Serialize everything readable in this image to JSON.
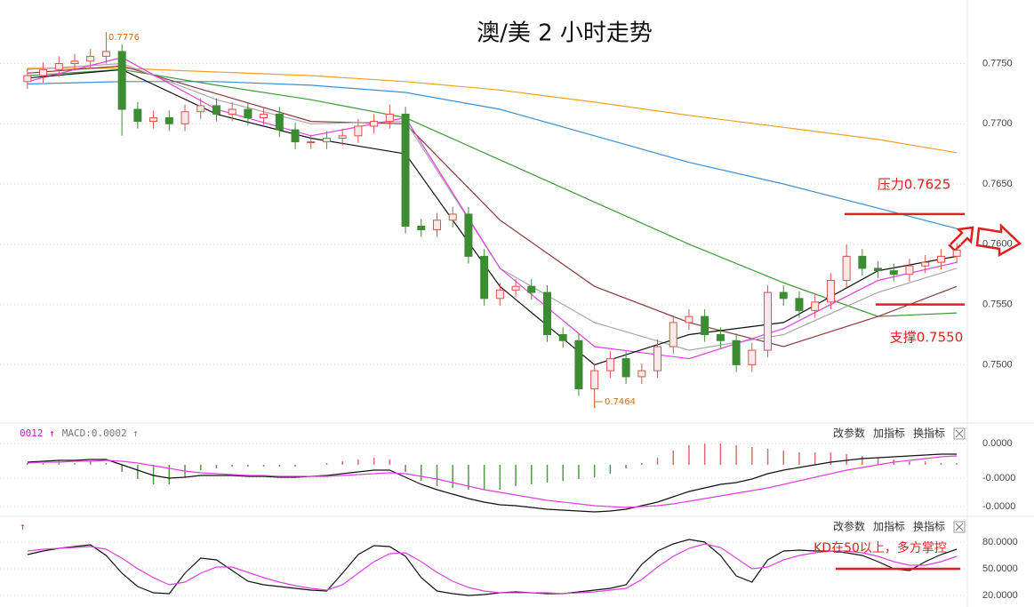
{
  "chart_data": [
    {
      "type": "candlestick",
      "title": "澳/美 2 小时走势",
      "up_color": "#d9534f",
      "down_color": "#3d8c34",
      "open": [
        0.7735,
        0.774,
        0.7745,
        0.775,
        0.7752,
        0.7756,
        0.776,
        0.7712,
        0.7702,
        0.7705,
        0.77,
        0.771,
        0.7715,
        0.7708,
        0.7712,
        0.7705,
        0.7708,
        0.7695,
        0.7685,
        0.7685,
        0.7688,
        0.769,
        0.7698,
        0.7702,
        0.7708,
        0.7615,
        0.7612,
        0.762,
        0.7625,
        0.759,
        0.7555,
        0.7562,
        0.7565,
        0.756,
        0.7525,
        0.752,
        0.748,
        0.7495,
        0.7505,
        0.749,
        0.7495,
        0.7515,
        0.7535,
        0.754,
        0.7525,
        0.752,
        0.75,
        0.7512,
        0.756,
        0.7555,
        0.7545,
        0.7552,
        0.757,
        0.759,
        0.758,
        0.7578,
        0.7575,
        0.7582,
        0.7585,
        0.759
      ],
      "high": [
        0.7746,
        0.7751,
        0.7756,
        0.7758,
        0.7762,
        0.7776,
        0.7766,
        0.7718,
        0.7711,
        0.7711,
        0.7716,
        0.7721,
        0.7721,
        0.7718,
        0.7718,
        0.7714,
        0.7714,
        0.7701,
        0.7691,
        0.7694,
        0.7696,
        0.7704,
        0.7708,
        0.7716,
        0.7714,
        0.7621,
        0.7626,
        0.7631,
        0.7631,
        0.7596,
        0.7568,
        0.7571,
        0.7571,
        0.7566,
        0.7531,
        0.7526,
        0.7501,
        0.7511,
        0.7511,
        0.7501,
        0.7521,
        0.7541,
        0.7546,
        0.7546,
        0.7531,
        0.7526,
        0.7518,
        0.7566,
        0.7566,
        0.7561,
        0.7558,
        0.7576,
        0.76,
        0.7596,
        0.7586,
        0.7584,
        0.7588,
        0.7591,
        0.7596,
        0.7601
      ],
      "low": [
        0.7729,
        0.7734,
        0.7739,
        0.7744,
        0.7746,
        0.775,
        0.769,
        0.7696,
        0.7696,
        0.7694,
        0.7694,
        0.7704,
        0.7702,
        0.7702,
        0.7699,
        0.7699,
        0.7689,
        0.7679,
        0.7679,
        0.7679,
        0.7682,
        0.7684,
        0.7692,
        0.7696,
        0.7609,
        0.7606,
        0.7606,
        0.7614,
        0.7584,
        0.7549,
        0.7549,
        0.7556,
        0.7554,
        0.7519,
        0.7514,
        0.7474,
        0.7464,
        0.7489,
        0.7484,
        0.7484,
        0.7489,
        0.7509,
        0.7529,
        0.7519,
        0.7514,
        0.7494,
        0.7494,
        0.7506,
        0.7549,
        0.7539,
        0.7539,
        0.7546,
        0.7564,
        0.7574,
        0.7572,
        0.7569,
        0.7569,
        0.7576,
        0.7579,
        0.7584
      ],
      "close": [
        0.774,
        0.7745,
        0.775,
        0.7752,
        0.7756,
        0.776,
        0.7712,
        0.7702,
        0.7705,
        0.77,
        0.771,
        0.7715,
        0.7708,
        0.7712,
        0.7705,
        0.7708,
        0.7695,
        0.7685,
        0.7685,
        0.7688,
        0.769,
        0.7698,
        0.7702,
        0.7708,
        0.7615,
        0.7612,
        0.762,
        0.7625,
        0.759,
        0.7555,
        0.7562,
        0.7565,
        0.756,
        0.7525,
        0.752,
        0.748,
        0.7495,
        0.7505,
        0.749,
        0.7495,
        0.7515,
        0.7535,
        0.754,
        0.7525,
        0.752,
        0.75,
        0.7512,
        0.756,
        0.7555,
        0.7545,
        0.7552,
        0.757,
        0.759,
        0.758,
        0.7578,
        0.7575,
        0.7582,
        0.7585,
        0.759,
        0.7595
      ],
      "series": [
        {
          "color": "#f0a020",
          "x": [
            0,
            6,
            12,
            18,
            24,
            30,
            36,
            42,
            48,
            54,
            59
          ],
          "values": [
            0.7746,
            0.7746,
            0.7743,
            0.774,
            0.7735,
            0.7728,
            0.7718,
            0.7707,
            0.7697,
            0.7687,
            0.7676
          ]
        },
        {
          "color": "#3a8fd8",
          "x": [
            0,
            6,
            12,
            18,
            24,
            30,
            36,
            42,
            48,
            54,
            59
          ],
          "values": [
            0.7733,
            0.7735,
            0.7735,
            0.7732,
            0.7726,
            0.7712,
            0.769,
            0.7668,
            0.765,
            0.763,
            0.7613
          ]
        },
        {
          "color": "#3f9a3a",
          "x": [
            0,
            6,
            12,
            18,
            24,
            30,
            36,
            42,
            48,
            54,
            59
          ],
          "values": [
            0.774,
            0.7745,
            0.7732,
            0.772,
            0.7705,
            0.767,
            0.7635,
            0.76,
            0.7568,
            0.754,
            0.7543
          ]
        },
        {
          "color": "#8b3a3a",
          "x": [
            0,
            6,
            12,
            18,
            24,
            30,
            36,
            42,
            48,
            54,
            59
          ],
          "values": [
            0.7742,
            0.7748,
            0.7725,
            0.7702,
            0.77,
            0.762,
            0.7565,
            0.7535,
            0.7515,
            0.754,
            0.7565
          ]
        },
        {
          "color": "#a8a8a8",
          "x": [
            0,
            6,
            12,
            18,
            24,
            30,
            36,
            42,
            48,
            54,
            59
          ],
          "values": [
            0.7745,
            0.775,
            0.772,
            0.77,
            0.7702,
            0.758,
            0.7535,
            0.7512,
            0.7525,
            0.756,
            0.758
          ]
        },
        {
          "color": "#e040e0",
          "x": [
            0,
            6,
            12,
            18,
            24,
            30,
            36,
            42,
            48,
            54,
            59
          ],
          "values": [
            0.7735,
            0.7755,
            0.7712,
            0.769,
            0.7705,
            0.758,
            0.7515,
            0.7505,
            0.753,
            0.757,
            0.7585
          ]
        },
        {
          "color": "#111111",
          "x": [
            0,
            6,
            12,
            18,
            24,
            30,
            36,
            42,
            48,
            54,
            59
          ],
          "values": [
            0.7738,
            0.7745,
            0.7708,
            0.7688,
            0.7675,
            0.7565,
            0.75,
            0.7525,
            0.7535,
            0.7578,
            0.759
          ]
        }
      ],
      "ylim": [
        0.7456,
        0.7788
      ],
      "yticks": [
        {
          "value": 0.775,
          "label": "0.7750"
        },
        {
          "value": 0.77,
          "label": "0.7700"
        },
        {
          "value": 0.765,
          "label": "0.7650"
        },
        {
          "value": 0.76,
          "label": "0.7600"
        },
        {
          "value": 0.755,
          "label": "0.7550"
        },
        {
          "value": 0.75,
          "label": "0.7500"
        }
      ],
      "grid": true,
      "annotations": [
        "0.7776",
        "0.7464"
      ],
      "levels": [
        {
          "label": "压力0.7625",
          "value": 0.7625,
          "color": "#e02020"
        },
        {
          "label": "支撑0.7550",
          "value": 0.755,
          "color": "#e02020"
        }
      ]
    },
    {
      "type": "macd",
      "indicator_labels": [
        {
          "text": "0012 ↑",
          "color": "#c020c0"
        },
        {
          "text": "MACD:0.0002 ↑",
          "color": "#777777"
        }
      ],
      "toolbar": [
        "改参数",
        "加指标",
        "换指标"
      ],
      "up_color": "#e06a6a",
      "down_color": "#4f9a45",
      "histogram": [
        2e-06,
        2e-06,
        4e-06,
        2e-06,
        4e-06,
        2e-06,
        -8e-06,
        -1.6e-05,
        -2.2e-05,
        -2.2e-05,
        -1.4e-05,
        -6e-06,
        -4e-06,
        -2e-06,
        -2e-06,
        -2e-06,
        -2e-06,
        -2e-06,
        0,
        2e-06,
        4e-06,
        6e-06,
        8e-06,
        6e-06,
        -8e-06,
        -1.8e-05,
        -2.4e-05,
        -2.6e-05,
        -2.8e-05,
        -2.8e-05,
        -2.8e-05,
        -2.4e-05,
        -2.2e-05,
        -2e-05,
        -1.8e-05,
        -1.6e-05,
        -1.4e-05,
        -1e-05,
        -4e-06,
        2e-06,
        8e-06,
        1.6e-05,
        2.2e-05,
        2.4e-05,
        2.4e-05,
        2.2e-05,
        2e-05,
        1.8e-05,
        1.6e-05,
        1.4e-05,
        1.4e-05,
        1.4e-05,
        1.2e-05,
        1e-05,
        8e-06,
        6e-06,
        4e-06,
        4e-06,
        2e-06,
        2e-06
      ],
      "series": [
        {
          "color": "#111111",
          "values": [
            3e-06,
            4e-06,
            5e-06,
            5e-06,
            6e-06,
            6e-06,
            0,
            -6e-06,
            -1.2e-05,
            -1.5e-05,
            -1.4e-05,
            -1.2e-05,
            -1.2e-05,
            -1.2e-05,
            -1.3e-05,
            -1.3e-05,
            -1.4e-05,
            -1.4e-05,
            -1.3e-05,
            -1.2e-05,
            -1e-05,
            -8e-06,
            -6e-06,
            -6e-06,
            -1.4e-05,
            -2.2e-05,
            -2.8e-05,
            -3.3e-05,
            -3.8e-05,
            -4.2e-05,
            -4.5e-05,
            -4.6e-05,
            -4.8e-05,
            -5e-05,
            -5.1e-05,
            -5.2e-05,
            -5.3e-05,
            -5.2e-05,
            -5e-05,
            -4.6e-05,
            -4.2e-05,
            -3.6e-05,
            -3e-05,
            -2.6e-05,
            -2.2e-05,
            -2e-05,
            -1.6e-05,
            -1e-05,
            -6e-06,
            -3e-06,
            0,
            3e-06,
            5e-06,
            7e-06,
            8e-06,
            9e-06,
            1e-05,
            1.1e-05,
            1.2e-05,
            1.2e-05
          ]
        },
        {
          "color": "#e040e0",
          "values": [
            2e-06,
            3e-06,
            3e-06,
            4e-06,
            4e-06,
            5e-06,
            4e-06,
            2e-06,
            -1e-06,
            -4e-06,
            -7e-06,
            -9e-06,
            -1e-05,
            -1.1e-05,
            -1.2e-05,
            -1.2e-05,
            -1.3e-05,
            -1.3e-05,
            -1.3e-05,
            -1.3e-05,
            -1.2e-05,
            -1.1e-05,
            -1e-05,
            -9e-06,
            -1e-05,
            -1.3e-05,
            -1.6e-05,
            -2e-05,
            -2.4e-05,
            -2.8e-05,
            -3.1e-05,
            -3.4e-05,
            -3.7e-05,
            -4e-05,
            -4.2e-05,
            -4.4e-05,
            -4.6e-05,
            -4.7e-05,
            -4.8e-05,
            -4.7e-05,
            -4.6e-05,
            -4.4e-05,
            -4.1e-05,
            -3.8e-05,
            -3.5e-05,
            -3.2e-05,
            -2.9e-05,
            -2.6e-05,
            -2.2e-05,
            -1.8e-05,
            -1.4e-05,
            -1e-05,
            -6e-06,
            -3e-06,
            0,
            3e-06,
            5e-06,
            7e-06,
            9e-06,
            1e-05
          ]
        }
      ],
      "ylim": [
        -5.5e-05,
        4.3e-05
      ],
      "yticks": [
        {
          "value": 2.4e-05,
          "label": "0.0000"
        },
        {
          "value": -1.5e-05,
          "label": "-0.0000"
        },
        {
          "value": -4.7e-05,
          "label": "-0.0000"
        }
      ],
      "grid": true
    },
    {
      "type": "kd",
      "indicator_labels": [
        {
          "text": "↑",
          "color": "#c020c0"
        }
      ],
      "toolbar": [
        "改参数",
        "加指标",
        "换指标"
      ],
      "series": [
        {
          "color": "#111111",
          "values": [
            66,
            70,
            73,
            75,
            77,
            65,
            45,
            30,
            23,
            22,
            45,
            62,
            60,
            48,
            36,
            32,
            30,
            28,
            26,
            25,
            45,
            66,
            76,
            75,
            64,
            40,
            25,
            22,
            20,
            21,
            23,
            24,
            23,
            22,
            22,
            24,
            26,
            28,
            32,
            55,
            70,
            78,
            83,
            80,
            65,
            42,
            35,
            60,
            70,
            71,
            70,
            70,
            68,
            65,
            58,
            50,
            48,
            58,
            66,
            72
          ]
        },
        {
          "color": "#e040e0",
          "values": [
            70,
            72,
            73,
            74,
            75,
            72,
            62,
            50,
            40,
            32,
            35,
            45,
            52,
            52,
            46,
            40,
            35,
            31,
            28,
            26,
            32,
            45,
            58,
            67,
            68,
            58,
            46,
            36,
            29,
            25,
            23,
            23,
            23,
            23,
            22,
            23,
            24,
            26,
            28,
            38,
            52,
            64,
            73,
            78,
            74,
            62,
            50,
            52,
            60,
            65,
            68,
            70,
            70,
            68,
            64,
            58,
            54,
            54,
            58,
            64
          ]
        }
      ],
      "ylim": [
        15,
        102
      ],
      "yticks": [
        {
          "value": 80,
          "label": "80.0000"
        },
        {
          "value": 50,
          "label": "50.0000"
        },
        {
          "value": 20,
          "label": "20.0000"
        }
      ],
      "grid": true,
      "levels": [
        {
          "label": "KD在50以上，多方掌控",
          "value": 50,
          "color": "#e02020"
        }
      ]
    }
  ]
}
